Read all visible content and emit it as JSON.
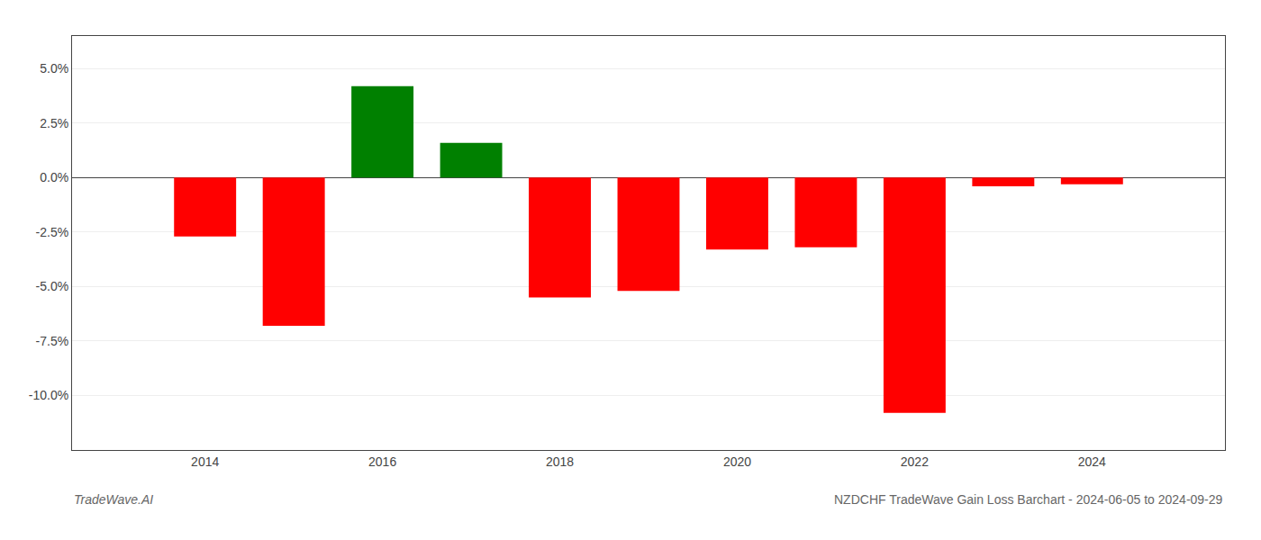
{
  "chart_data": {
    "type": "bar",
    "annotations": [
      "TradeWave.AI",
      "NZDCHF TradeWave Gain Loss Barchart - 2024-06-05 to 2024-09-29"
    ],
    "x": [
      2014,
      2015,
      2016,
      2017,
      2018,
      2019,
      2020,
      2021,
      2022,
      2023,
      2024
    ],
    "values": [
      -0.027,
      -0.068,
      0.042,
      0.016,
      -0.055,
      -0.052,
      -0.033,
      -0.032,
      -0.108,
      -0.004,
      -0.003
    ],
    "colors": [
      "#ff0000",
      "#ff0000",
      "#008000",
      "#008000",
      "#ff0000",
      "#ff0000",
      "#ff0000",
      "#ff0000",
      "#ff0000",
      "#ff0000",
      "#ff0000"
    ],
    "ylim": [
      -0.125,
      0.065
    ],
    "yticks": [
      {
        "value": -0.1,
        "label": "-10.0%"
      },
      {
        "value": -0.075,
        "label": "-7.5%"
      },
      {
        "value": -0.05,
        "label": "-5.0%"
      },
      {
        "value": -0.025,
        "label": "-2.5%"
      },
      {
        "value": 0.0,
        "label": "0.0%"
      },
      {
        "value": 0.025,
        "label": "2.5%"
      },
      {
        "value": 0.05,
        "label": "5.0%"
      }
    ],
    "xlim": [
      2012.5,
      2025.5
    ],
    "xticks": [
      2014,
      2016,
      2018,
      2020,
      2022,
      2024
    ],
    "grid": true
  }
}
